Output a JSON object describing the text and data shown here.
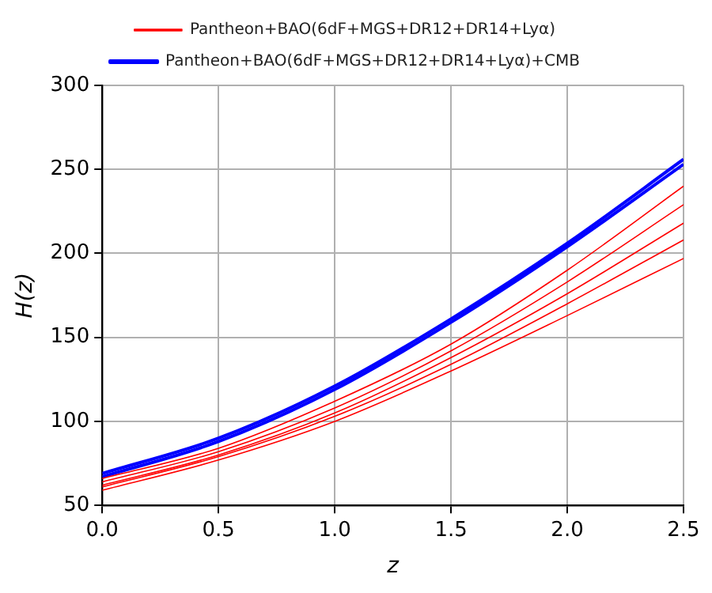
{
  "chart_data": {
    "type": "line",
    "xlabel": "z",
    "ylabel": "H(z)",
    "x": [
      0,
      0.5,
      1,
      1.5,
      2,
      2.5
    ],
    "series": [
      {
        "name": "Pantheon+BAO(6dF+MGS+DR12+DR14+Lyα)",
        "color": "#ff0000",
        "values": [
          59,
          77,
          100,
          130,
          163,
          197
        ]
      },
      {
        "color": "#ff0000",
        "values": [
          61,
          79,
          103,
          134,
          170,
          208
        ]
      },
      {
        "color": "#ff0000",
        "values": [
          62,
          80,
          105,
          138,
          176,
          218
        ]
      },
      {
        "color": "#ff0000",
        "values": [
          64,
          82,
          108,
          142,
          183,
          229
        ]
      },
      {
        "color": "#ff0000",
        "values": [
          66,
          84,
          112,
          146,
          190,
          240
        ]
      },
      {
        "name": "Pantheon+BAO(6dF+MGS+DR12+DR14+Lyα)+CMB",
        "color": "#0000ff",
        "values": [
          67,
          88,
          119,
          159,
          204,
          253
        ]
      },
      {
        "color": "#0000ff",
        "values": [
          69,
          90,
          121,
          161,
          206,
          256
        ]
      }
    ],
    "xlim": [
      0,
      2.5
    ],
    "xticks": [
      {
        "value": 0,
        "label": "0.0"
      },
      {
        "value": 0.5,
        "label": "0.5"
      },
      {
        "value": 1,
        "label": "1.0"
      },
      {
        "value": 1.5,
        "label": "1.5"
      },
      {
        "value": 2,
        "label": "2.0"
      },
      {
        "value": 2.5,
        "label": "2.5"
      }
    ],
    "ylim": [
      50,
      300
    ],
    "yticks": [
      50,
      100,
      150,
      200,
      250,
      300
    ],
    "grid": true,
    "legend": "top",
    "marker": "none",
    "line_style": "solid"
  }
}
